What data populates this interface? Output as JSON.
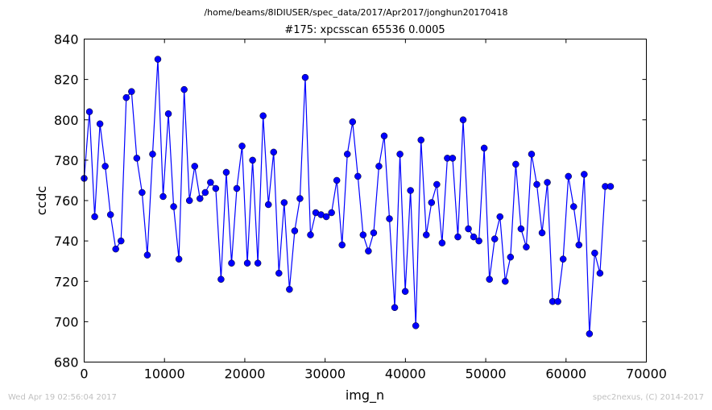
{
  "header": {
    "suptitle": "/home/beams/8IDIUSER/spec_data/2017/Apr2017/jonghun20170418",
    "title": "#175: xpcsscan 65536 0.0005"
  },
  "footer": {
    "timestamp": "Wed Apr 19 02:56:04 2017",
    "credit": "spec2nexus, (C) 2014-2017"
  },
  "colors": {
    "series": "#0000ff",
    "axes": "#000000",
    "footer_text": "#c0c0c0"
  },
  "chart_data": {
    "type": "line",
    "title": "#175: xpcsscan 65536 0.0005",
    "xlabel": "img_n",
    "ylabel": "ccdc",
    "xlim": [
      0,
      70000
    ],
    "ylim": [
      680,
      840
    ],
    "xticks": [
      0,
      10000,
      20000,
      30000,
      40000,
      50000,
      60000,
      70000
    ],
    "yticks": [
      680,
      700,
      720,
      740,
      760,
      780,
      800,
      820,
      840
    ],
    "grid": false,
    "marker": "circle",
    "series": [
      {
        "x": [
          0,
          655,
          1311,
          1966,
          2621,
          3277,
          3932,
          4588,
          5243,
          5898,
          6554,
          7209,
          7864,
          8520,
          9175,
          9830,
          10486,
          11141,
          11796,
          12452,
          13107,
          13763,
          14418,
          15073,
          15729,
          16384,
          17039,
          17695,
          18350,
          19005,
          19661,
          20316,
          20972,
          21627,
          22282,
          22938,
          23593,
          24248,
          24904,
          25559,
          26214,
          26870,
          27525,
          28181,
          28836,
          29491,
          30147,
          30802,
          31457,
          32113,
          32768,
          33423,
          34079,
          34734,
          35389,
          36045,
          36700,
          37356,
          38011,
          38666,
          39322,
          39977,
          40632,
          41288,
          41943,
          42598,
          43254,
          43909,
          44565,
          45220,
          45875,
          46531,
          47186,
          47841,
          48497,
          49152,
          49807,
          50463,
          51118,
          51774,
          52429,
          53084,
          53740,
          54395,
          55050,
          55706,
          56361,
          57016,
          57672,
          58327,
          58982,
          59638,
          60293,
          60949,
          61604,
          62259,
          62915,
          63570,
          64225,
          64881,
          65536
        ],
        "y": [
          771,
          804,
          752,
          798,
          777,
          753,
          736,
          740,
          811,
          814,
          781,
          764,
          733,
          783,
          830,
          762,
          803,
          757,
          731,
          815,
          760,
          777,
          761,
          764,
          769,
          766,
          721,
          774,
          729,
          766,
          787,
          729,
          780,
          729,
          802,
          758,
          784,
          724,
          759,
          716,
          745,
          761,
          821,
          743,
          754,
          753,
          752,
          754,
          770,
          738,
          783,
          799,
          772,
          743,
          735,
          744,
          777,
          792,
          751,
          707,
          783,
          715,
          765,
          698,
          790,
          743,
          759,
          768,
          739,
          781,
          781,
          742,
          800,
          746,
          742,
          740,
          786,
          721,
          741,
          752,
          720,
          732,
          778,
          746,
          737,
          783,
          768,
          744,
          769,
          710,
          710,
          731,
          772,
          757,
          738,
          773,
          694,
          734,
          724,
          767,
          767
        ]
      }
    ]
  }
}
